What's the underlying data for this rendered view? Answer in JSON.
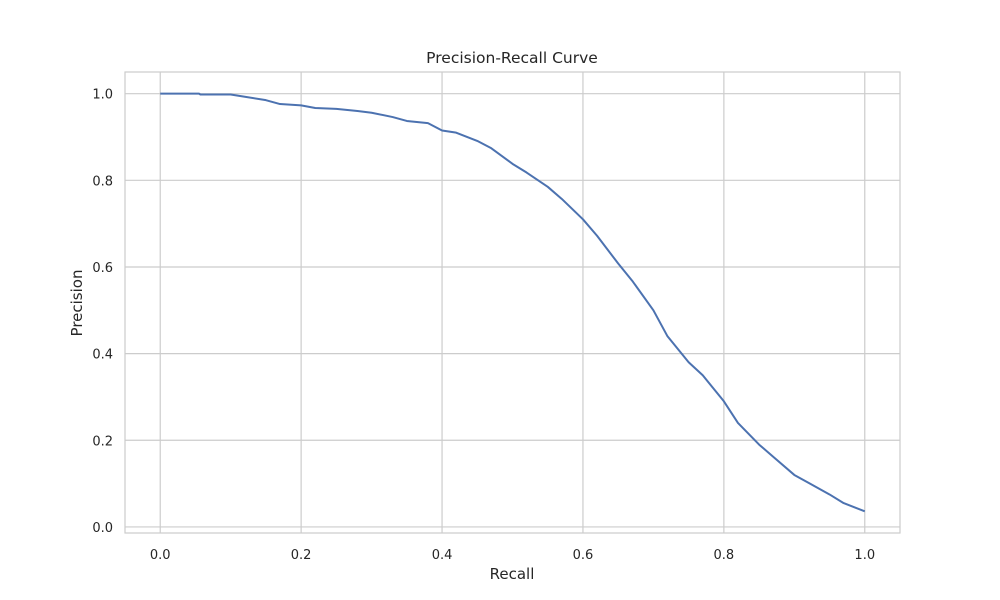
{
  "chart_data": {
    "type": "line",
    "title": "Precision-Recall Curve",
    "xlabel": "Recall",
    "ylabel": "Precision",
    "xlim": [
      -0.05,
      1.05
    ],
    "ylim": [
      -0.014,
      1.05
    ],
    "grid": true,
    "xticks": [
      0.0,
      0.2,
      0.4,
      0.6,
      0.8,
      1.0
    ],
    "xtick_labels": [
      "0.0",
      "0.2",
      "0.4",
      "0.6",
      "0.8",
      "1.0"
    ],
    "yticks": [
      0.0,
      0.2,
      0.4,
      0.6,
      0.8,
      1.0
    ],
    "ytick_labels": [
      "0.0",
      "0.2",
      "0.4",
      "0.6",
      "0.8",
      "1.0"
    ],
    "series": [
      {
        "name": "Precision-Recall",
        "color": "#4c72b0",
        "x": [
          0.0,
          0.03,
          0.055,
          0.057,
          0.08,
          0.1,
          0.12,
          0.15,
          0.17,
          0.2,
          0.22,
          0.25,
          0.28,
          0.3,
          0.33,
          0.35,
          0.38,
          0.4,
          0.42,
          0.45,
          0.47,
          0.5,
          0.52,
          0.55,
          0.57,
          0.6,
          0.62,
          0.65,
          0.67,
          0.7,
          0.72,
          0.75,
          0.77,
          0.8,
          0.82,
          0.85,
          0.87,
          0.9,
          0.92,
          0.95,
          0.97,
          1.0
        ],
        "y": [
          1.0,
          1.0,
          1.0,
          0.998,
          0.998,
          0.998,
          0.993,
          0.985,
          0.976,
          0.973,
          0.967,
          0.965,
          0.96,
          0.956,
          0.946,
          0.937,
          0.932,
          0.915,
          0.91,
          0.891,
          0.874,
          0.838,
          0.818,
          0.785,
          0.757,
          0.71,
          0.672,
          0.608,
          0.568,
          0.5,
          0.44,
          0.38,
          0.35,
          0.29,
          0.24,
          0.19,
          0.162,
          0.12,
          0.102,
          0.075,
          0.055,
          0.036
        ]
      }
    ]
  }
}
